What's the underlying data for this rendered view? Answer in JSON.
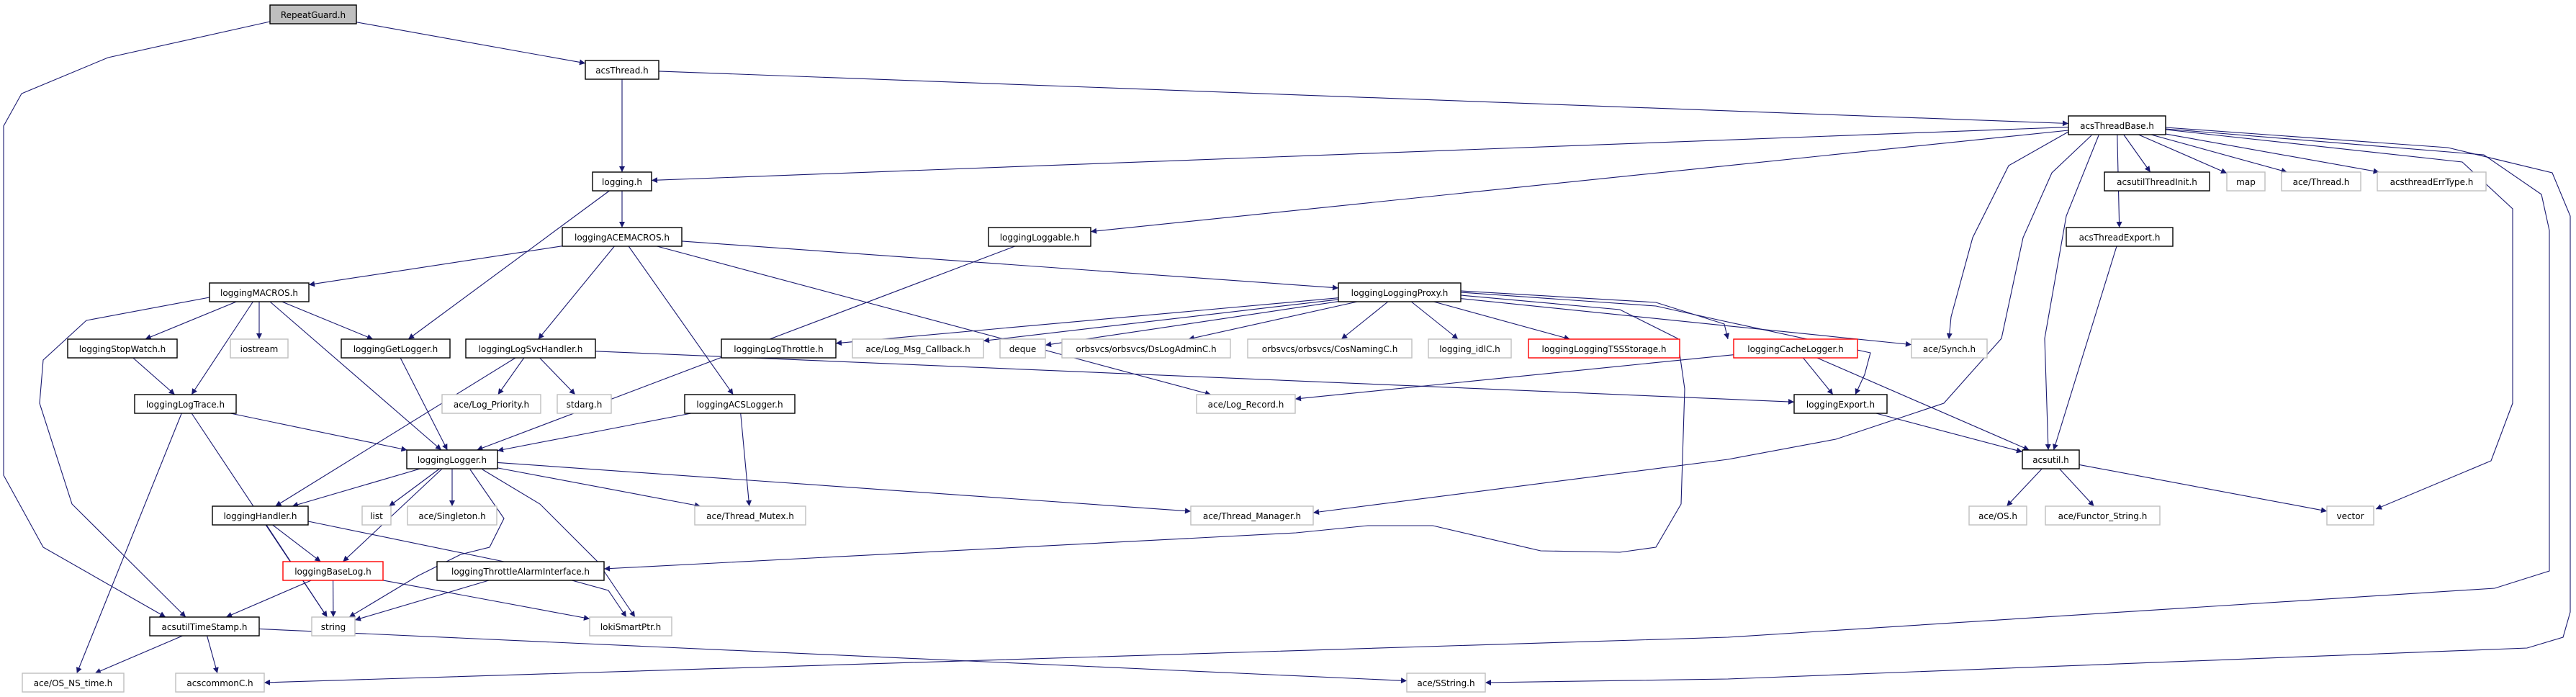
{
  "graph": {
    "edge_color": "#191970",
    "nodes": [
      {
        "id": "RepeatGuard",
        "label": "RepeatGuard.h",
        "kind": "root"
      },
      {
        "id": "acsThread",
        "label": "acsThread.h",
        "kind": "normal"
      },
      {
        "id": "acsThreadBase",
        "label": "acsThreadBase.h",
        "kind": "normal"
      },
      {
        "id": "logging",
        "label": "logging.h",
        "kind": "normal"
      },
      {
        "id": "acsutilThreadInit",
        "label": "acsutilThreadInit.h",
        "kind": "normal"
      },
      {
        "id": "map",
        "label": "map",
        "kind": "gray"
      },
      {
        "id": "aceThread",
        "label": "ace/Thread.h",
        "kind": "gray"
      },
      {
        "id": "acsthreadErrType",
        "label": "acsthreadErrType.h",
        "kind": "gray"
      },
      {
        "id": "loggingACEMACROS",
        "label": "loggingACEMACROS.h",
        "kind": "normal"
      },
      {
        "id": "loggingLoggable",
        "label": "loggingLoggable.h",
        "kind": "normal"
      },
      {
        "id": "acsThreadExport",
        "label": "acsThreadExport.h",
        "kind": "normal"
      },
      {
        "id": "loggingMACROS",
        "label": "loggingMACROS.h",
        "kind": "normal"
      },
      {
        "id": "loggingLoggingProxy",
        "label": "loggingLoggingProxy.h",
        "kind": "normal"
      },
      {
        "id": "loggingStopWatch",
        "label": "loggingStopWatch.h",
        "kind": "normal"
      },
      {
        "id": "iostream",
        "label": "iostream",
        "kind": "gray"
      },
      {
        "id": "loggingGetLogger",
        "label": "loggingGetLogger.h",
        "kind": "normal"
      },
      {
        "id": "loggingLogSvcHandler",
        "label": "loggingLogSvcHandler.h",
        "kind": "normal"
      },
      {
        "id": "loggingLogThrottle",
        "label": "loggingLogThrottle.h",
        "kind": "normal"
      },
      {
        "id": "aceLogMsgCallback",
        "label": "ace/Log_Msg_Callback.h",
        "kind": "gray"
      },
      {
        "id": "deque",
        "label": "deque",
        "kind": "gray"
      },
      {
        "id": "DsLogAdminC",
        "label": "orbsvcs/orbsvcs/DsLogAdminC.h",
        "kind": "gray"
      },
      {
        "id": "CosNamingC",
        "label": "orbsvcs/orbsvcs/CosNamingC.h",
        "kind": "gray"
      },
      {
        "id": "logging_idlC",
        "label": "logging_idlC.h",
        "kind": "gray"
      },
      {
        "id": "TSSStorage",
        "label": "loggingLoggingTSSStorage.h",
        "kind": "red"
      },
      {
        "id": "loggingCacheLogger",
        "label": "loggingCacheLogger.h",
        "kind": "red"
      },
      {
        "id": "aceSynch",
        "label": "ace/Synch.h",
        "kind": "gray"
      },
      {
        "id": "loggingLogTrace",
        "label": "loggingLogTrace.h",
        "kind": "normal"
      },
      {
        "id": "aceLogPriority",
        "label": "ace/Log_Priority.h",
        "kind": "gray"
      },
      {
        "id": "stdarg",
        "label": "stdarg.h",
        "kind": "gray"
      },
      {
        "id": "loggingACSLogger",
        "label": "loggingACSLogger.h",
        "kind": "normal"
      },
      {
        "id": "aceLogRecord",
        "label": "ace/Log_Record.h",
        "kind": "gray"
      },
      {
        "id": "loggingExport",
        "label": "loggingExport.h",
        "kind": "normal"
      },
      {
        "id": "loggingLogger",
        "label": "loggingLogger.h",
        "kind": "normal"
      },
      {
        "id": "acsutil",
        "label": "acsutil.h",
        "kind": "normal"
      },
      {
        "id": "loggingHandler",
        "label": "loggingHandler.h",
        "kind": "normal"
      },
      {
        "id": "list",
        "label": "list",
        "kind": "gray"
      },
      {
        "id": "aceSingleton",
        "label": "ace/Singleton.h",
        "kind": "gray"
      },
      {
        "id": "aceThreadMutex",
        "label": "ace/Thread_Mutex.h",
        "kind": "gray"
      },
      {
        "id": "aceThreadManager",
        "label": "ace/Thread_Manager.h",
        "kind": "gray"
      },
      {
        "id": "aceOS",
        "label": "ace/OS.h",
        "kind": "gray"
      },
      {
        "id": "aceFunctorString",
        "label": "ace/Functor_String.h",
        "kind": "gray"
      },
      {
        "id": "vector",
        "label": "vector",
        "kind": "gray"
      },
      {
        "id": "loggingBaseLog",
        "label": "loggingBaseLog.h",
        "kind": "red"
      },
      {
        "id": "loggingThrottleAlarmInterface",
        "label": "loggingThrottleAlarmInterface.h",
        "kind": "normal"
      },
      {
        "id": "acsutilTimeStamp",
        "label": "acsutilTimeStamp.h",
        "kind": "normal"
      },
      {
        "id": "string",
        "label": "string",
        "kind": "gray"
      },
      {
        "id": "lokiSmartPtr",
        "label": "lokiSmartPtr.h",
        "kind": "gray"
      },
      {
        "id": "aceOSNStime",
        "label": "ace/OS_NS_time.h",
        "kind": "gray"
      },
      {
        "id": "acscommonC",
        "label": "acscommonC.h",
        "kind": "gray"
      },
      {
        "id": "aceSString",
        "label": "ace/SString.h",
        "kind": "gray"
      }
    ],
    "edges": [
      [
        "RepeatGuard",
        "acsThread"
      ],
      [
        "RepeatGuard",
        "acsutilTimeStamp"
      ],
      [
        "acsThread",
        "logging"
      ],
      [
        "acsThread",
        "acsThreadBase"
      ],
      [
        "acsThreadBase",
        "logging"
      ],
      [
        "acsThreadBase",
        "loggingLoggable"
      ],
      [
        "acsThreadBase",
        "aceSynch"
      ],
      [
        "acsThreadBase",
        "acsutil"
      ],
      [
        "acsThreadBase",
        "acsutilThreadInit"
      ],
      [
        "acsThreadBase",
        "map"
      ],
      [
        "acsThreadBase",
        "aceThread"
      ],
      [
        "acsThreadBase",
        "acsthreadErrType"
      ],
      [
        "acsThreadBase",
        "acsThreadExport"
      ],
      [
        "acsThreadBase",
        "vector"
      ],
      [
        "acsThreadBase",
        "aceThreadManager"
      ],
      [
        "acsThreadBase",
        "acscommonC"
      ],
      [
        "acsThreadBase",
        "aceSString"
      ],
      [
        "logging",
        "loggingACEMACROS"
      ],
      [
        "logging",
        "loggingGetLogger"
      ],
      [
        "loggingACEMACROS",
        "loggingMACROS"
      ],
      [
        "loggingACEMACROS",
        "loggingLogSvcHandler"
      ],
      [
        "loggingACEMACROS",
        "loggingLoggingProxy"
      ],
      [
        "loggingACEMACROS",
        "loggingACSLogger"
      ],
      [
        "loggingACEMACROS",
        "aceLogRecord"
      ],
      [
        "loggingLoggable",
        "loggingLogger"
      ],
      [
        "acsThreadExport",
        "acsutil"
      ],
      [
        "loggingMACROS",
        "loggingStopWatch"
      ],
      [
        "loggingMACROS",
        "iostream"
      ],
      [
        "loggingMACROS",
        "loggingGetLogger"
      ],
      [
        "loggingMACROS",
        "loggingLogTrace"
      ],
      [
        "loggingMACROS",
        "loggingLogger"
      ],
      [
        "loggingMACROS",
        "acsutilTimeStamp"
      ],
      [
        "loggingLoggingProxy",
        "loggingLogThrottle"
      ],
      [
        "loggingLoggingProxy",
        "aceLogMsgCallback"
      ],
      [
        "loggingLoggingProxy",
        "deque"
      ],
      [
        "loggingLoggingProxy",
        "DsLogAdminC"
      ],
      [
        "loggingLoggingProxy",
        "CosNamingC"
      ],
      [
        "loggingLoggingProxy",
        "logging_idlC"
      ],
      [
        "loggingLoggingProxy",
        "TSSStorage"
      ],
      [
        "loggingLoggingProxy",
        "loggingCacheLogger"
      ],
      [
        "loggingLoggingProxy",
        "aceSynch"
      ],
      [
        "loggingLoggingProxy",
        "loggingExport"
      ],
      [
        "loggingLoggingProxy",
        "loggingThrottleAlarmInterface"
      ],
      [
        "loggingStopWatch",
        "loggingLogTrace"
      ],
      [
        "loggingGetLogger",
        "loggingLogger"
      ],
      [
        "loggingLogSvcHandler",
        "loggingHandler"
      ],
      [
        "loggingLogSvcHandler",
        "aceLogPriority"
      ],
      [
        "loggingLogSvcHandler",
        "stdarg"
      ],
      [
        "loggingLogSvcHandler",
        "loggingExport"
      ],
      [
        "loggingCacheLogger",
        "loggingExport"
      ],
      [
        "loggingCacheLogger",
        "acsutil"
      ],
      [
        "loggingCacheLogger",
        "aceLogRecord"
      ],
      [
        "loggingLogTrace",
        "loggingLogger"
      ],
      [
        "loggingLogTrace",
        "string"
      ],
      [
        "loggingLogTrace",
        "aceOSNStime"
      ],
      [
        "loggingACSLogger",
        "loggingLogger"
      ],
      [
        "loggingACSLogger",
        "aceThreadMutex"
      ],
      [
        "loggingExport",
        "acsutil"
      ],
      [
        "loggingLogger",
        "loggingHandler"
      ],
      [
        "loggingLogger",
        "list"
      ],
      [
        "loggingLogger",
        "aceSingleton"
      ],
      [
        "loggingLogger",
        "loggingBaseLog"
      ],
      [
        "loggingLogger",
        "string"
      ],
      [
        "loggingLogger",
        "lokiSmartPtr"
      ],
      [
        "loggingLogger",
        "aceThreadMutex"
      ],
      [
        "loggingLogger",
        "aceThreadManager"
      ],
      [
        "acsutil",
        "aceOS"
      ],
      [
        "acsutil",
        "aceFunctorString"
      ],
      [
        "acsutil",
        "vector"
      ],
      [
        "loggingHandler",
        "loggingBaseLog"
      ],
      [
        "loggingHandler",
        "string"
      ],
      [
        "loggingHandler",
        "lokiSmartPtr"
      ],
      [
        "loggingBaseLog",
        "acsutilTimeStamp"
      ],
      [
        "loggingBaseLog",
        "string"
      ],
      [
        "loggingBaseLog",
        "lokiSmartPtr"
      ],
      [
        "loggingThrottleAlarmInterface",
        "string"
      ],
      [
        "acsutilTimeStamp",
        "aceOSNStime"
      ],
      [
        "acsutilTimeStamp",
        "acscommonC"
      ],
      [
        "acsutilTimeStamp",
        "aceSString"
      ]
    ]
  }
}
